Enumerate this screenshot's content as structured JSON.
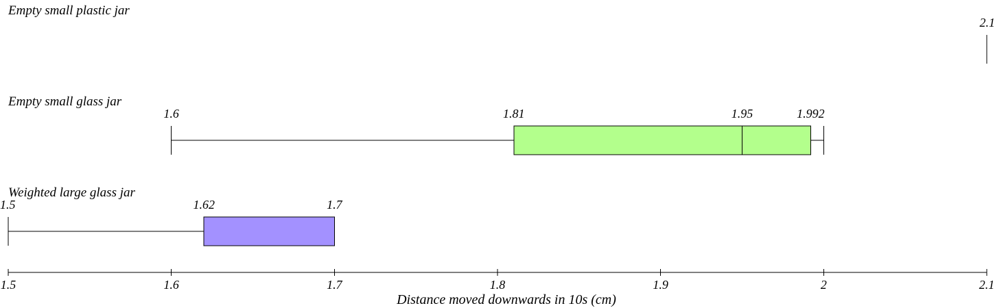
{
  "chart_data": {
    "type": "boxplot",
    "title": "",
    "xlabel": "Distance moved downwards in 10s (cm)",
    "ylabel": "",
    "xlim": [
      1.5,
      2.1
    ],
    "x_ticks": [
      "1.5",
      "1.6",
      "1.7",
      "1.8",
      "1.9",
      "2",
      "2.1"
    ],
    "orientation": "horizontal",
    "grid": false,
    "series": [
      {
        "name": "Empty small plastic jar",
        "min": 2.1,
        "q1": 2.1,
        "median": 2.1,
        "q3": 2.1,
        "max": 2.1,
        "labels": [
          "2.1"
        ],
        "color": "#b3ff8c"
      },
      {
        "name": "Empty small glass jar",
        "min": 1.6,
        "q1": 1.81,
        "median": 1.95,
        "q3": 1.992,
        "max": 2.0,
        "labels": [
          "1.6",
          "1.81",
          "1.95",
          "1.992"
        ],
        "color": "#b3ff8c"
      },
      {
        "name": "Weighted large glass jar",
        "min": 1.5,
        "q1": 1.62,
        "median": 1.7,
        "q3": 1.7,
        "max": 1.7,
        "labels": [
          "1.5",
          "1.62",
          "1.7"
        ],
        "color": "#a391ff"
      }
    ]
  }
}
